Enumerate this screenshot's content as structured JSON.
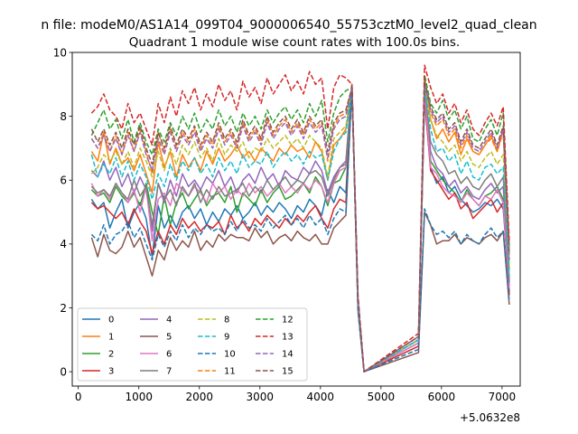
{
  "suptitle": "n file: modeM0/AS1A14_099T04_9000006540_55753cztM0_level2_quad_clean",
  "chart_data": {
    "type": "line",
    "title": "Quadrant 1 module wise count rates with 100.0s bins.",
    "xlabel": "",
    "ylabel": "",
    "xlim": [
      -100,
      7300
    ],
    "ylim": [
      -0.45,
      10.0
    ],
    "x_offset_label": "+5.0632e8",
    "xticks": [
      0,
      1000,
      2000,
      3000,
      4000,
      5000,
      6000,
      7000
    ],
    "yticks": [
      0,
      2,
      4,
      6,
      8,
      10
    ],
    "grid": false,
    "legend": {
      "placement": "lower-left",
      "columns": 4
    },
    "x": [
      220,
      320,
      420,
      520,
      620,
      720,
      820,
      920,
      1020,
      1120,
      1220,
      1320,
      1420,
      1520,
      1620,
      1720,
      1820,
      1920,
      2020,
      2120,
      2220,
      2320,
      2420,
      2520,
      2620,
      2720,
      2820,
      2920,
      3020,
      3120,
      3220,
      3320,
      3420,
      3520,
      3620,
      3720,
      3820,
      3920,
      4020,
      4120,
      4220,
      4320,
      4420,
      4520,
      4620,
      4720,
      5620,
      5720,
      5820,
      5920,
      6020,
      6120,
      6220,
      6320,
      6420,
      6520,
      6620,
      6720,
      6820,
      6920,
      7020,
      7120
    ],
    "series": [
      {
        "name": "0",
        "color": "#1f77b4",
        "dash": "solid",
        "values": [
          5.4,
          5.1,
          5.3,
          4.5,
          5.0,
          5.4,
          4.5,
          5.0,
          5.3,
          4.8,
          3.6,
          5.2,
          4.5,
          4.9,
          4.5,
          5.0,
          5.2,
          4.8,
          5.1,
          4.6,
          5.0,
          4.7,
          5.1,
          4.9,
          5.2,
          4.8,
          5.0,
          5.3,
          4.9,
          5.2,
          5.0,
          5.3,
          5.1,
          4.8,
          5.2,
          5.0,
          5.4,
          5.2,
          4.9,
          5.7,
          5.3,
          5.8,
          5.6,
          8.9,
          2.0,
          0.0,
          0.9,
          8.5,
          6.4,
          5.9,
          6.1,
          5.6,
          5.8,
          5.4,
          5.2,
          5.0,
          5.1,
          5.3,
          5.2,
          5.4,
          5.1,
          2.7
        ]
      },
      {
        "name": "1",
        "color": "#ff7f0e",
        "dash": "solid",
        "values": [
          6.9,
          6.6,
          7.5,
          6.5,
          7.0,
          6.5,
          6.7,
          6.3,
          6.8,
          6.2,
          5.6,
          7.2,
          6.4,
          6.9,
          6.1,
          6.8,
          6.4,
          6.7,
          6.3,
          6.9,
          6.5,
          7.0,
          6.6,
          6.8,
          7.1,
          6.7,
          6.9,
          6.6,
          7.0,
          6.8,
          6.6,
          7.0,
          6.8,
          7.1,
          6.9,
          7.0,
          6.7,
          7.2,
          6.9,
          6.0,
          7.1,
          7.3,
          7.6,
          8.9,
          2.2,
          0.0,
          1.0,
          9.1,
          7.9,
          7.3,
          7.6,
          7.2,
          7.5,
          6.8,
          7.3,
          6.9,
          6.8,
          7.1,
          7.4,
          6.9,
          7.6,
          3.2
        ]
      },
      {
        "name": "2",
        "color": "#2ca02c",
        "dash": "solid",
        "values": [
          5.7,
          5.5,
          5.6,
          5.3,
          5.8,
          5.5,
          5.3,
          5.6,
          5.2,
          5.9,
          5.0,
          4.3,
          5.5,
          4.6,
          5.3,
          5.6,
          5.1,
          5.4,
          5.7,
          5.2,
          5.5,
          5.6,
          5.3,
          5.8,
          5.0,
          5.6,
          5.4,
          5.2,
          5.7,
          5.3,
          5.6,
          5.8,
          5.4,
          5.5,
          5.7,
          5.9,
          5.6,
          6.1,
          5.8,
          5.2,
          5.9,
          6.0,
          6.4,
          8.9,
          2.1,
          0.0,
          1.0,
          8.8,
          6.6,
          6.3,
          6.0,
          5.8,
          5.6,
          5.3,
          5.7,
          5.4,
          5.2,
          5.5,
          5.6,
          5.8,
          5.4,
          2.5
        ]
      },
      {
        "name": "3",
        "color": "#d62728",
        "dash": "solid",
        "values": [
          5.3,
          5.1,
          5.2,
          5.0,
          4.8,
          5.0,
          4.6,
          5.1,
          4.7,
          4.4,
          3.7,
          4.4,
          4.0,
          4.6,
          4.3,
          4.8,
          4.5,
          4.7,
          4.4,
          4.6,
          4.5,
          4.7,
          4.3,
          4.9,
          4.5,
          4.7,
          4.4,
          4.8,
          4.6,
          4.9,
          4.7,
          4.5,
          4.8,
          4.6,
          4.9,
          4.7,
          5.0,
          5.2,
          4.8,
          4.5,
          5.1,
          5.4,
          5.3,
          8.9,
          2.0,
          0.0,
          0.8,
          8.6,
          6.3,
          6.0,
          5.7,
          5.4,
          5.6,
          5.1,
          5.3,
          4.8,
          5.0,
          5.2,
          5.4,
          5.0,
          5.3,
          2.4
        ]
      },
      {
        "name": "4",
        "color": "#9467bd",
        "dash": "solid",
        "values": [
          6.3,
          6.1,
          6.6,
          6.0,
          6.4,
          5.8,
          6.2,
          5.6,
          6.1,
          5.7,
          4.4,
          5.9,
          5.3,
          6.0,
          5.5,
          6.2,
          5.8,
          6.0,
          5.7,
          6.1,
          5.9,
          6.3,
          5.8,
          6.1,
          5.6,
          6.0,
          6.2,
          5.9,
          6.4,
          6.0,
          6.2,
          5.8,
          6.3,
          6.1,
          6.0,
          6.4,
          6.2,
          6.6,
          6.3,
          5.6,
          6.1,
          6.4,
          6.6,
          9.0,
          2.2,
          0.0,
          1.0,
          8.9,
          6.9,
          6.4,
          6.2,
          5.8,
          6.0,
          5.6,
          5.8,
          5.5,
          5.4,
          5.7,
          5.9,
          5.6,
          5.8,
          2.9
        ]
      },
      {
        "name": "5",
        "color": "#8c564b",
        "dash": "solid",
        "values": [
          4.2,
          3.6,
          4.3,
          3.8,
          3.7,
          3.9,
          4.4,
          3.9,
          4.2,
          3.6,
          3.0,
          3.8,
          3.5,
          4.2,
          3.8,
          4.1,
          3.9,
          4.4,
          3.8,
          4.1,
          3.9,
          4.3,
          4.1,
          4.3,
          4.2,
          4.2,
          4.1,
          4.5,
          4.2,
          4.4,
          4.0,
          4.2,
          4.3,
          4.1,
          4.4,
          4.2,
          4.1,
          4.3,
          4.0,
          4.0,
          4.5,
          4.7,
          4.9,
          9.0,
          1.9,
          0.0,
          0.6,
          5.0,
          4.6,
          4.0,
          4.1,
          4.1,
          4.3,
          4.0,
          4.2,
          4.1,
          4.0,
          4.2,
          4.3,
          4.1,
          4.4,
          2.1
        ]
      },
      {
        "name": "6",
        "color": "#e377c2",
        "dash": "solid",
        "values": [
          5.9,
          5.5,
          5.7,
          5.4,
          5.9,
          5.6,
          5.3,
          5.7,
          5.0,
          5.8,
          4.1,
          5.4,
          5.6,
          5.2,
          5.9,
          5.7,
          5.5,
          5.8,
          5.6,
          5.3,
          5.9,
          5.6,
          5.8,
          5.4,
          5.7,
          5.5,
          5.9,
          5.6,
          5.8,
          5.5,
          5.7,
          5.9,
          5.6,
          5.8,
          5.6,
          5.9,
          5.7,
          6.0,
          5.8,
          5.3,
          5.9,
          6.3,
          6.4,
          9.0,
          2.0,
          0.0,
          0.9,
          8.8,
          6.4,
          6.2,
          5.8,
          5.6,
          5.5,
          5.3,
          5.6,
          5.4,
          5.2,
          5.5,
          5.4,
          5.7,
          5.3,
          2.6
        ]
      },
      {
        "name": "7",
        "color": "#7f7f7f",
        "dash": "solid",
        "values": [
          5.8,
          5.6,
          5.7,
          5.5,
          5.9,
          5.6,
          5.4,
          6.0,
          5.5,
          5.8,
          4.6,
          5.9,
          5.4,
          5.7,
          5.2,
          5.8,
          5.5,
          5.9,
          5.3,
          5.7,
          5.4,
          5.8,
          5.5,
          5.6,
          5.7,
          5.9,
          5.5,
          5.8,
          5.6,
          6.0,
          5.7,
          5.9,
          6.1,
          5.8,
          6.0,
          5.9,
          6.2,
          6.3,
          6.1,
          5.5,
          6.0,
          6.4,
          6.5,
          9.0,
          2.1,
          0.0,
          1.0,
          8.9,
          7.2,
          6.8,
          6.6,
          6.2,
          6.3,
          5.9,
          6.1,
          5.8,
          5.7,
          6.0,
          6.2,
          5.8,
          6.1,
          2.8
        ]
      },
      {
        "name": "8",
        "color": "#bcbd22",
        "dash": "dashed",
        "values": [
          6.2,
          6.4,
          6.8,
          6.6,
          6.9,
          6.5,
          6.9,
          6.4,
          7.0,
          6.6,
          6.1,
          6.9,
          6.3,
          7.0,
          6.5,
          7.1,
          6.8,
          7.2,
          6.7,
          7.0,
          6.6,
          7.3,
          6.8,
          7.1,
          6.9,
          7.2,
          6.7,
          7.0,
          6.9,
          7.3,
          7.0,
          7.2,
          7.4,
          7.1,
          7.3,
          7.0,
          7.4,
          7.2,
          7.0,
          6.1,
          7.3,
          7.5,
          7.7,
          8.9,
          2.2,
          0.0,
          1.0,
          9.0,
          7.9,
          7.4,
          7.2,
          6.9,
          7.1,
          6.6,
          6.9,
          6.5,
          6.4,
          6.7,
          6.9,
          6.5,
          6.8,
          3.3
        ]
      },
      {
        "name": "9",
        "color": "#17becf",
        "dash": "dashed",
        "values": [
          6.8,
          6.1,
          6.5,
          6.2,
          6.7,
          6.1,
          6.6,
          6.0,
          6.5,
          6.1,
          5.4,
          6.2,
          5.8,
          6.5,
          6.0,
          6.6,
          6.3,
          6.7,
          6.2,
          6.5,
          6.1,
          6.7,
          6.3,
          6.6,
          6.2,
          6.8,
          6.4,
          6.6,
          6.5,
          6.9,
          6.4,
          6.7,
          6.9,
          6.6,
          6.8,
          6.5,
          6.9,
          6.7,
          6.8,
          6.0,
          6.9,
          7.3,
          7.5,
          8.9,
          2.1,
          0.0,
          1.0,
          8.9,
          7.6,
          6.9,
          7.0,
          6.6,
          6.8,
          6.2,
          6.6,
          6.1,
          6.0,
          6.4,
          6.5,
          6.2,
          6.4,
          3.0
        ]
      },
      {
        "name": "10",
        "color": "#1f77b4",
        "dash": "dashed",
        "values": [
          4.3,
          4.1,
          4.6,
          4.0,
          4.3,
          4.4,
          4.7,
          4.2,
          4.5,
          4.0,
          3.5,
          4.3,
          3.9,
          4.4,
          4.1,
          4.6,
          4.2,
          4.5,
          4.3,
          4.6,
          4.4,
          4.5,
          4.3,
          4.7,
          4.4,
          4.8,
          4.5,
          4.6,
          4.4,
          4.8,
          4.5,
          4.7,
          4.9,
          4.6,
          4.8,
          4.5,
          4.9,
          4.6,
          4.8,
          4.3,
          4.8,
          5.1,
          5.0,
          8.9,
          1.9,
          0.0,
          0.7,
          5.1,
          4.6,
          4.3,
          4.4,
          4.2,
          4.4,
          4.0,
          4.3,
          4.1,
          4.0,
          4.3,
          4.5,
          4.2,
          4.4,
          2.2
        ]
      },
      {
        "name": "11",
        "color": "#ff7f0e",
        "dash": "dashed",
        "values": [
          7.3,
          7.0,
          7.5,
          6.9,
          7.4,
          6.8,
          7.5,
          6.9,
          7.6,
          6.9,
          6.2,
          7.5,
          6.9,
          7.6,
          7.0,
          7.5,
          7.2,
          7.6,
          7.0,
          7.4,
          7.1,
          7.7,
          7.2,
          7.5,
          7.1,
          7.8,
          7.3,
          7.6,
          7.2,
          7.9,
          7.4,
          7.7,
          7.9,
          7.5,
          7.8,
          7.4,
          7.9,
          7.6,
          7.8,
          6.6,
          7.7,
          8.0,
          8.1,
          8.9,
          2.3,
          0.0,
          1.1,
          9.2,
          8.1,
          7.7,
          7.9,
          7.4,
          7.6,
          7.0,
          7.4,
          6.9,
          6.8,
          7.1,
          7.3,
          6.9,
          7.5,
          3.6
        ]
      },
      {
        "name": "12",
        "color": "#2ca02c",
        "dash": "dashed",
        "values": [
          7.4,
          7.8,
          8.2,
          7.6,
          7.9,
          7.3,
          7.9,
          7.2,
          7.8,
          7.2,
          6.8,
          7.6,
          7.2,
          7.8,
          7.4,
          8.0,
          7.6,
          8.1,
          7.5,
          7.9,
          7.6,
          8.2,
          7.7,
          8.0,
          7.5,
          8.1,
          7.7,
          8.0,
          7.6,
          8.2,
          7.8,
          8.1,
          8.3,
          7.9,
          8.2,
          7.8,
          8.4,
          8.0,
          8.5,
          7.2,
          8.1,
          8.6,
          8.8,
          8.9,
          2.3,
          0.0,
          1.1,
          9.3,
          8.4,
          8.1,
          8.5,
          7.9,
          8.2,
          7.6,
          8.0,
          7.3,
          7.2,
          7.6,
          7.9,
          7.4,
          8.1,
          3.9
        ]
      },
      {
        "name": "13",
        "color": "#d62728",
        "dash": "dashed",
        "values": [
          8.1,
          8.3,
          8.7,
          8.2,
          8.0,
          7.6,
          8.4,
          7.8,
          8.1,
          7.6,
          7.1,
          8.4,
          7.8,
          8.6,
          8.0,
          8.8,
          8.4,
          8.9,
          8.2,
          8.7,
          8.3,
          9.0,
          8.5,
          8.8,
          8.2,
          9.1,
          8.6,
          8.9,
          8.4,
          9.2,
          8.7,
          9.0,
          9.3,
          8.8,
          9.1,
          8.7,
          9.4,
          9.0,
          9.2,
          7.6,
          8.9,
          9.3,
          9.2,
          9.0,
          2.4,
          0.0,
          1.2,
          9.6,
          8.9,
          8.4,
          8.7,
          8.1,
          8.4,
          7.8,
          8.2,
          7.6,
          7.4,
          7.8,
          8.1,
          7.7,
          8.3,
          4.1
        ]
      },
      {
        "name": "14",
        "color": "#9467bd",
        "dash": "dashed",
        "values": [
          7.3,
          7.0,
          7.4,
          6.9,
          7.3,
          6.8,
          7.4,
          6.9,
          7.5,
          6.8,
          6.3,
          7.3,
          6.8,
          7.5,
          6.9,
          7.4,
          7.1,
          7.5,
          6.9,
          7.3,
          7.0,
          7.6,
          7.1,
          7.4,
          7.0,
          7.7,
          7.2,
          7.5,
          7.1,
          7.8,
          7.3,
          7.6,
          7.8,
          7.4,
          7.7,
          7.3,
          7.8,
          7.5,
          7.7,
          6.7,
          7.6,
          7.9,
          8.0,
          8.9,
          2.2,
          0.0,
          1.1,
          9.0,
          8.2,
          7.8,
          8.0,
          7.5,
          7.7,
          7.1,
          7.5,
          7.0,
          6.9,
          7.2,
          7.5,
          7.0,
          7.6,
          3.5
        ]
      },
      {
        "name": "15",
        "color": "#8c564b",
        "dash": "dashed",
        "values": [
          7.6,
          7.2,
          7.6,
          7.1,
          7.5,
          7.0,
          7.6,
          7.1,
          7.7,
          7.0,
          6.5,
          7.5,
          7.0,
          7.7,
          7.1,
          7.6,
          7.3,
          7.7,
          7.1,
          7.5,
          7.2,
          7.8,
          7.3,
          7.6,
          7.2,
          7.9,
          7.4,
          7.7,
          7.3,
          8.0,
          7.5,
          7.8,
          8.0,
          7.6,
          7.9,
          7.5,
          8.0,
          7.7,
          7.9,
          6.9,
          7.8,
          8.1,
          8.2,
          8.9,
          2.3,
          0.0,
          1.1,
          9.1,
          8.3,
          7.9,
          8.1,
          7.6,
          7.8,
          7.2,
          7.6,
          7.1,
          7.0,
          7.3,
          7.6,
          7.1,
          7.7,
          3.7
        ]
      }
    ]
  }
}
